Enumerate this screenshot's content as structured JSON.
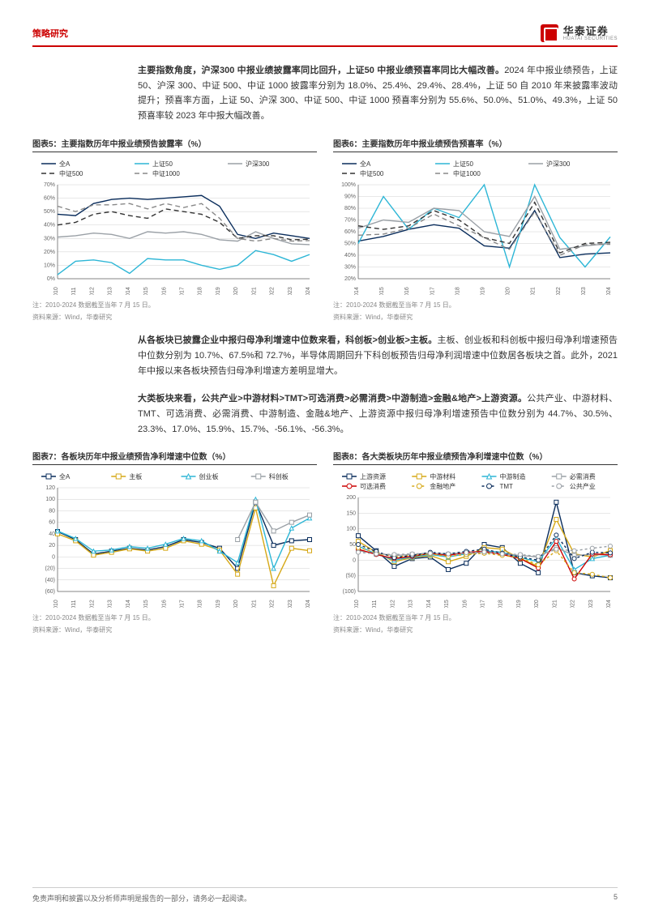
{
  "header": {
    "left": "策略研究",
    "logo_cn": "华泰证券",
    "logo_en": "HUATAI SECURITIES"
  },
  "para1": {
    "bold": "主要指数角度，沪深300 中报业绩披露率同比回升，上证50 中报业绩预喜率同比大幅改善。",
    "rest": "2024 年中报业绩预告，上证 50、沪深 300、中证 500、中证 1000 披露率分别为 18.0%、25.4%、29.4%、28.4%，上证 50 自 2010 年来披露率波动提升；预喜率方面，上证 50、沪深 300、中证 500、中证 1000 预喜率分别为 55.6%、50.0%、51.0%、49.3%，上证 50 预喜率较 2023 年中报大幅改善。"
  },
  "para2": {
    "bold": "从各板块已披露企业中报归母净利增速中位数来看，科创板>创业板>主板。",
    "rest": "主板、创业板和科创板中报归母净利增速预告中位数分别为 10.7%、67.5%和 72.7%，半导体周期回升下科创板预告归母净利润增速中位数居各板块之首。此外，2021 年中报以来各板块预告归母净利增速方差明显增大。"
  },
  "para3": {
    "bold": "大类板块来看，公共产业>中游材料>TMT>可选消费>必需消费>中游制造>金融&地产>上游资源。",
    "rest": "公共产业、中游材料、TMT、可选消费、必需消费、中游制造、金融&地产、上游资源中报归母净利增速预告中位数分别为 44.7%、30.5%、23.3%、17.0%、15.9%、15.7%、-56.1%、-56.3%。"
  },
  "chart5": {
    "title": "图表5：主要指数历年中报业绩预告披露率（%）",
    "type": "line",
    "x": [
      "2010",
      "2011",
      "2012",
      "2013",
      "2014",
      "2015",
      "2016",
      "2017",
      "2018",
      "2019",
      "2020",
      "2021",
      "2022",
      "2023",
      "2024"
    ],
    "ylim": [
      0,
      70
    ],
    "yticks": [
      0,
      10,
      20,
      30,
      40,
      50,
      60,
      70
    ],
    "series": [
      {
        "name": "全A",
        "color": "#0a2d5c",
        "dash": "none",
        "marker": false,
        "values": [
          48,
          47,
          56,
          59,
          60,
          59,
          60,
          61,
          62,
          54,
          33,
          30,
          34,
          32,
          30
        ]
      },
      {
        "name": "上证50",
        "color": "#2db6d6",
        "dash": "none",
        "marker": false,
        "values": [
          3,
          13,
          14,
          12,
          4,
          15,
          14,
          14,
          10,
          7,
          10,
          21,
          18,
          13,
          18
        ]
      },
      {
        "name": "沪深300",
        "color": "#9aa0a6",
        "dash": "none",
        "marker": false,
        "values": [
          31,
          32,
          34,
          33,
          30,
          35,
          34,
          35,
          33,
          29,
          28,
          35,
          30,
          26,
          25.4
        ]
      },
      {
        "name": "中证500",
        "color": "#333",
        "dash": "6,4",
        "marker": false,
        "values": [
          40,
          42,
          48,
          50,
          47,
          45,
          52,
          50,
          48,
          42,
          30,
          32,
          32,
          29,
          29.4
        ]
      },
      {
        "name": "中证1000",
        "color": "#888",
        "dash": "6,4",
        "marker": false,
        "values": [
          54,
          50,
          55,
          55,
          56,
          52,
          56,
          53,
          56,
          45,
          30,
          28,
          30,
          28,
          28.4
        ]
      }
    ],
    "note": "注：2010-2024 数据截至当年 7 月 15 日。",
    "source": "资料来源：Wind，华泰研究",
    "bg": "#fff",
    "grid": "#d0d0d0",
    "axis": "#666",
    "tick_fs": 7,
    "legend_fs": 8
  },
  "chart6": {
    "title": "图表6：主要指数历年中报业绩预告预喜率（%）",
    "type": "line",
    "x": [
      "2014",
      "2015",
      "2016",
      "2017",
      "2018",
      "2019",
      "2020",
      "2021",
      "2022",
      "2023",
      "2024"
    ],
    "ylim": [
      20,
      100
    ],
    "yticks": [
      20,
      30,
      40,
      50,
      60,
      70,
      80,
      90,
      100
    ],
    "series": [
      {
        "name": "全A",
        "color": "#0a2d5c",
        "dash": "none",
        "marker": false,
        "values": [
          52,
          56,
          62,
          66,
          63,
          48,
          46,
          78,
          38,
          41,
          42
        ]
      },
      {
        "name": "上证50",
        "color": "#2db6d6",
        "dash": "none",
        "marker": false,
        "values": [
          50,
          90,
          62,
          80,
          72,
          100,
          30,
          100,
          55,
          30,
          55.6
        ]
      },
      {
        "name": "沪深300",
        "color": "#9aa0a6",
        "dash": "none",
        "marker": false,
        "values": [
          63,
          70,
          68,
          80,
          78,
          60,
          56,
          90,
          45,
          48,
          50
        ]
      },
      {
        "name": "中证500",
        "color": "#333",
        "dash": "6,4",
        "marker": false,
        "values": [
          65,
          62,
          65,
          78,
          70,
          55,
          50,
          85,
          42,
          50,
          51
        ]
      },
      {
        "name": "中证1000",
        "color": "#888",
        "dash": "6,4",
        "marker": false,
        "values": [
          57,
          58,
          63,
          75,
          65,
          55,
          45,
          77,
          40,
          49,
          49.3
        ]
      }
    ],
    "note": "注：2010-2024 数据截至当年 7 月 15 日。",
    "source": "资料来源：Wind，华泰研究",
    "bg": "#fff",
    "grid": "#d0d0d0",
    "axis": "#666",
    "tick_fs": 7,
    "legend_fs": 8
  },
  "chart7": {
    "title": "图表7：各板块历年中报业绩预告净利增速中位数（%）",
    "type": "line",
    "x": [
      "2010",
      "2011",
      "2012",
      "2013",
      "2014",
      "2015",
      "2016",
      "2017",
      "2018",
      "2019",
      "2020",
      "2021",
      "2022",
      "2023",
      "2024"
    ],
    "ylim": [
      -60,
      120
    ],
    "yticks": [
      -60,
      -40,
      -20,
      0,
      20,
      40,
      60,
      80,
      100,
      120
    ],
    "series": [
      {
        "name": "全A",
        "color": "#0a2d5c",
        "dash": "none",
        "marker": "square",
        "values": [
          44,
          30,
          5,
          10,
          15,
          12,
          18,
          30,
          25,
          15,
          -20,
          95,
          20,
          28,
          30
        ]
      },
      {
        "name": "主板",
        "color": "#d6a817",
        "dash": "none",
        "marker": "square",
        "values": [
          40,
          28,
          3,
          8,
          14,
          10,
          15,
          28,
          22,
          12,
          -30,
          85,
          -50,
          15,
          10.7
        ]
      },
      {
        "name": "创业板",
        "color": "#2db6d6",
        "dash": "none",
        "marker": "triangle",
        "values": [
          45,
          32,
          10,
          12,
          18,
          15,
          22,
          32,
          28,
          10,
          -10,
          100,
          -20,
          50,
          67.5
        ]
      },
      {
        "name": "科创板",
        "color": "#9aa0a6",
        "dash": "none",
        "marker": "square",
        "values": [
          null,
          null,
          null,
          null,
          null,
          null,
          null,
          null,
          null,
          null,
          30,
          95,
          45,
          60,
          72.7
        ]
      }
    ],
    "note": "注：2010-2024 数据截至当年 7 月 15 日。",
    "source": "资料来源：Wind，华泰研究",
    "bg": "#fff",
    "grid": "#d0d0d0",
    "axis": "#666",
    "tick_fs": 7,
    "legend_fs": 8
  },
  "chart8": {
    "title": "图表8：各大类板块历年中报业绩预告净利增速中位数（%）",
    "type": "line",
    "x": [
      "2010",
      "2011",
      "2012",
      "2013",
      "2014",
      "2015",
      "2016",
      "2017",
      "2018",
      "2019",
      "2020",
      "2021",
      "2022",
      "2023",
      "2024"
    ],
    "ylim": [
      -100,
      200
    ],
    "yticks": [
      -100,
      -50,
      0,
      50,
      100,
      150,
      200
    ],
    "series": [
      {
        "name": "上游资源",
        "color": "#0a2d5c",
        "dash": "none",
        "marker": "square",
        "values": [
          78,
          30,
          -20,
          5,
          10,
          -30,
          -10,
          50,
          40,
          -10,
          -40,
          185,
          -40,
          -50,
          -56.3
        ]
      },
      {
        "name": "中游材料",
        "color": "#d6a817",
        "dash": "none",
        "marker": "square",
        "values": [
          60,
          25,
          -5,
          8,
          15,
          -5,
          12,
          40,
          35,
          5,
          -20,
          130,
          20,
          10,
          30.5
        ]
      },
      {
        "name": "中游制造",
        "color": "#2db6d6",
        "dash": "none",
        "marker": "triangle",
        "values": [
          45,
          20,
          0,
          10,
          18,
          10,
          20,
          30,
          25,
          8,
          -5,
          70,
          -30,
          5,
          15.7
        ]
      },
      {
        "name": "必需消费",
        "color": "#9aa0a6",
        "dash": "none",
        "marker": "square",
        "values": [
          30,
          22,
          15,
          18,
          20,
          18,
          22,
          25,
          20,
          15,
          10,
          40,
          15,
          18,
          15.9
        ]
      },
      {
        "name": "可选消费",
        "color": "#c00",
        "dash": "none",
        "marker": "circle",
        "values": [
          35,
          18,
          5,
          12,
          22,
          15,
          25,
          28,
          18,
          5,
          -25,
          60,
          -60,
          20,
          17
        ]
      },
      {
        "name": "金融地产",
        "color": "#d6a817",
        "dash": "3,3",
        "marker": "circle",
        "values": [
          40,
          25,
          10,
          15,
          20,
          12,
          18,
          22,
          15,
          8,
          -15,
          30,
          -40,
          -45,
          -56.1
        ]
      },
      {
        "name": "TMT",
        "color": "#0a2d5c",
        "dash": "3,3",
        "marker": "circle",
        "values": [
          50,
          28,
          8,
          15,
          25,
          20,
          28,
          35,
          22,
          10,
          0,
          80,
          5,
          25,
          23.3
        ]
      },
      {
        "name": "公共产业",
        "color": "#9aa0a6",
        "dash": "3,3",
        "marker": "circle",
        "values": [
          25,
          20,
          18,
          20,
          22,
          20,
          24,
          26,
          20,
          18,
          12,
          35,
          30,
          38,
          44.7
        ]
      }
    ],
    "note": "注：2010-2024 数据截至当年 7 月 15 日。",
    "source": "资料来源：Wind，华泰研究",
    "bg": "#fff",
    "grid": "#d0d0d0",
    "axis": "#666",
    "tick_fs": 7,
    "legend_fs": 8
  },
  "footer": {
    "disclaimer": "免责声明和披露以及分析师声明是报告的一部分，请务必一起阅读。",
    "page": "5"
  }
}
